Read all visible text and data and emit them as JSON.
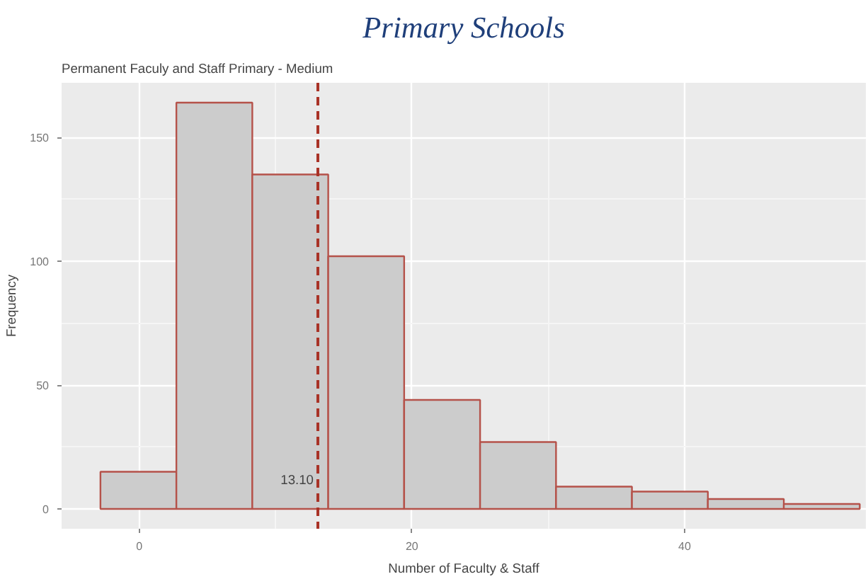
{
  "chart_data": {
    "type": "histogram",
    "title": "Primary Schools",
    "subtitle": "Permanent Faculy and Staff Primary - Medium",
    "xlabel": "Number of Faculty & Staff",
    "ylabel": "Frequency",
    "bins": [
      -2.85,
      2.72,
      8.29,
      13.86,
      19.43,
      25.0,
      30.57,
      36.14,
      41.71,
      47.28,
      52.85
    ],
    "values": [
      15,
      164,
      135,
      102,
      44,
      27,
      9,
      7,
      4,
      2
    ],
    "color": "#cccccc",
    "xlim": [
      -5.7,
      53.3
    ],
    "ylim": [
      -8,
      172
    ],
    "xticks": [
      0,
      20,
      40
    ],
    "yticks": [
      0,
      50,
      100,
      150
    ],
    "grid": true,
    "ref_lines": [
      {
        "axis": "x",
        "value": 13.1,
        "label": "13.10",
        "color": "#a93226",
        "line_style": "dashed"
      }
    ]
  }
}
